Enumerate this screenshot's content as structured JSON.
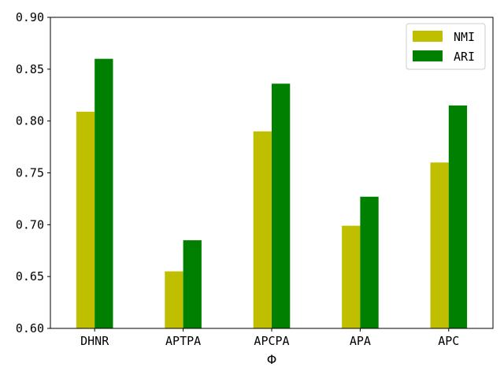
{
  "chart_data": {
    "type": "bar",
    "categories": [
      "DHNR",
      "APTPA",
      "APCPA",
      "APA",
      "APC"
    ],
    "series": [
      {
        "name": "NMI",
        "color": "#bfbf00",
        "values": [
          0.809,
          0.655,
          0.79,
          0.699,
          0.76
        ]
      },
      {
        "name": "ARI",
        "color": "#008000",
        "values": [
          0.86,
          0.685,
          0.836,
          0.727,
          0.815
        ]
      }
    ],
    "xlabel": "Φ",
    "ylabel": "",
    "ylim": [
      0.6,
      0.9
    ],
    "yticks": [
      "0.60",
      "0.65",
      "0.70",
      "0.75",
      "0.80",
      "0.85",
      "0.90"
    ],
    "legend_position": "top-right",
    "grid": false
  }
}
